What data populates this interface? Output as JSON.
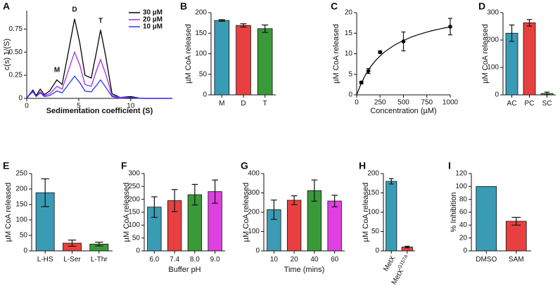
{
  "chart_data": [
    {
      "type": "line",
      "panel": "A",
      "y_label": "c(s) 1/(S)",
      "x_label": "Sedimentation coefficient (S)",
      "x": [
        0,
        0.3,
        0.6,
        0.9,
        1.3,
        1.7,
        2.2,
        2.9,
        3.4,
        4.0,
        4.6,
        5.1,
        5.6,
        6.2,
        6.7,
        7.1,
        7.6,
        8.2,
        9.0,
        10.0,
        11.0,
        14.0
      ],
      "series": [
        {
          "name": "30 µM",
          "color": "#000000",
          "values": [
            0,
            0.05,
            0.09,
            0.03,
            0.1,
            0.04,
            0.08,
            0.2,
            0.15,
            0.5,
            0.86,
            0.6,
            0.25,
            0.22,
            0.5,
            0.74,
            0.45,
            0.05,
            0.01,
            0.02,
            0,
            0
          ]
        },
        {
          "name": "20 µM",
          "color": "#a030e0",
          "values": [
            0,
            0.04,
            0.07,
            0.02,
            0.07,
            0.03,
            0.05,
            0.13,
            0.1,
            0.3,
            0.5,
            0.36,
            0.15,
            0.13,
            0.3,
            0.42,
            0.26,
            0.03,
            0.01,
            0.01,
            0,
            0
          ]
        },
        {
          "name": "10 µM",
          "color": "#3030ff",
          "values": [
            0,
            0.05,
            0.08,
            0.02,
            0.06,
            0.02,
            0.03,
            0.08,
            0.06,
            0.15,
            0.24,
            0.17,
            0.08,
            0.07,
            0.14,
            0.2,
            0.12,
            0.02,
            0,
            0.01,
            0,
            0
          ]
        }
      ],
      "annotations": [
        "M",
        "D",
        "T"
      ],
      "xlim": [
        0,
        14
      ],
      "xticks": [
        0,
        5,
        10
      ],
      "ylim": [
        0,
        0.95
      ],
      "yticks": [
        0,
        0.25,
        {
          "value": 0.5,
          "label": "0.50"
        },
        0.75
      ]
    },
    {
      "type": "bar",
      "panel": "B",
      "y_label": "µM CoA released",
      "categories": [
        "M",
        "D",
        "T"
      ],
      "values": [
        181,
        169,
        161
      ],
      "errors": [
        2,
        4,
        9
      ],
      "colors": [
        "#3a9bb5",
        "#e84040",
        "#3a9a3a"
      ],
      "ylim": [
        0,
        200
      ],
      "yticks": [
        0,
        50,
        100,
        150,
        200
      ]
    },
    {
      "type": "scatter",
      "panel": "C",
      "y_label": "µM CoA released",
      "x_label": "Concentration (µM)",
      "x": [
        50,
        125,
        250,
        500,
        1000
      ],
      "values": [
        3,
        5.8,
        10.4,
        13,
        16.6
      ],
      "errors": [
        0.3,
        0.6,
        0.3,
        2.3,
        2
      ],
      "color": "#000000",
      "fit": {
        "x": [
          0,
          50,
          100,
          150,
          200,
          250,
          300,
          400,
          500,
          600,
          700,
          800,
          900,
          1000
        ],
        "values": [
          0,
          2.91,
          5.12,
          6.88,
          8.3,
          9.48,
          10.48,
          12.05,
          13.25,
          14.19,
          14.95,
          15.58,
          16.1,
          16.54
        ]
      },
      "xlim": [
        0,
        1000
      ],
      "xticks": [
        0,
        250,
        500,
        750,
        1000
      ],
      "ylim": [
        0,
        20
      ],
      "yticks": [
        0,
        5,
        10,
        15,
        20
      ]
    },
    {
      "type": "bar",
      "panel": "D",
      "y_label": "µM CoA released",
      "categories": [
        "AC",
        "PC",
        "SC"
      ],
      "values": [
        225,
        263,
        5
      ],
      "errors": [
        30,
        12,
        5
      ],
      "colors": [
        "#3a9bb5",
        "#e84040",
        "#3a9a3a"
      ],
      "ylim": [
        0,
        300
      ],
      "yticks": [
        0,
        100,
        200,
        300
      ]
    },
    {
      "type": "bar",
      "panel": "E",
      "y_label": "µM CoA released",
      "categories": [
        "L-HS",
        "L-Ser",
        "L-Thr"
      ],
      "values": [
        188,
        25,
        22
      ],
      "errors": [
        45,
        10,
        6
      ],
      "colors": [
        "#3a9bb5",
        "#e84040",
        "#3a9a3a"
      ],
      "ylim": [
        0,
        250
      ],
      "yticks": [
        0,
        50,
        100,
        150,
        200,
        250
      ]
    },
    {
      "type": "bar",
      "panel": "F",
      "y_label": "µM CoA released",
      "x_label": "Buffer pH",
      "categories": [
        "6.0",
        "7.4",
        "8.0",
        "9.0"
      ],
      "values": [
        170,
        195,
        218,
        230
      ],
      "errors": [
        40,
        43,
        40,
        45
      ],
      "colors": [
        "#3a9bb5",
        "#e84040",
        "#3a9a3a",
        "#e040e0"
      ],
      "ylim": [
        0,
        300
      ],
      "yticks": [
        0,
        50,
        100,
        150,
        200,
        250,
        300
      ]
    },
    {
      "type": "bar",
      "panel": "G",
      "y_label": "µM CoA released",
      "x_label": "Time (mins)",
      "categories": [
        "10",
        "20",
        "40",
        "60"
      ],
      "values": [
        213,
        262,
        312,
        258
      ],
      "errors": [
        50,
        23,
        55,
        30
      ],
      "colors": [
        "#3a9bb5",
        "#e84040",
        "#3a9a3a",
        "#e040e0"
      ],
      "ylim": [
        0,
        400
      ],
      "yticks": [
        0,
        100,
        200,
        300,
        400
      ]
    },
    {
      "type": "bar",
      "panel": "H",
      "y_label": "µM CoA released",
      "categories": [
        "MetX",
        "MetX"
      ],
      "category_superscripts": [
        null,
        "G157A"
      ],
      "values": [
        180,
        10
      ],
      "errors": [
        7,
        2
      ],
      "colors": [
        "#3a9bb5",
        "#e84040"
      ],
      "ylim": [
        0,
        200
      ],
      "yticks": [
        0,
        50,
        100,
        150,
        200
      ]
    },
    {
      "type": "bar",
      "panel": "I",
      "y_label": "% Inhibition",
      "categories": [
        "DMSO",
        "SAM"
      ],
      "values": [
        100,
        46
      ],
      "errors": [
        0,
        6
      ],
      "colors": [
        "#3a9bb5",
        "#e84040"
      ],
      "ylim": [
        0,
        120
      ],
      "yticks": [
        0,
        20,
        40,
        60,
        80,
        100,
        120
      ]
    }
  ]
}
